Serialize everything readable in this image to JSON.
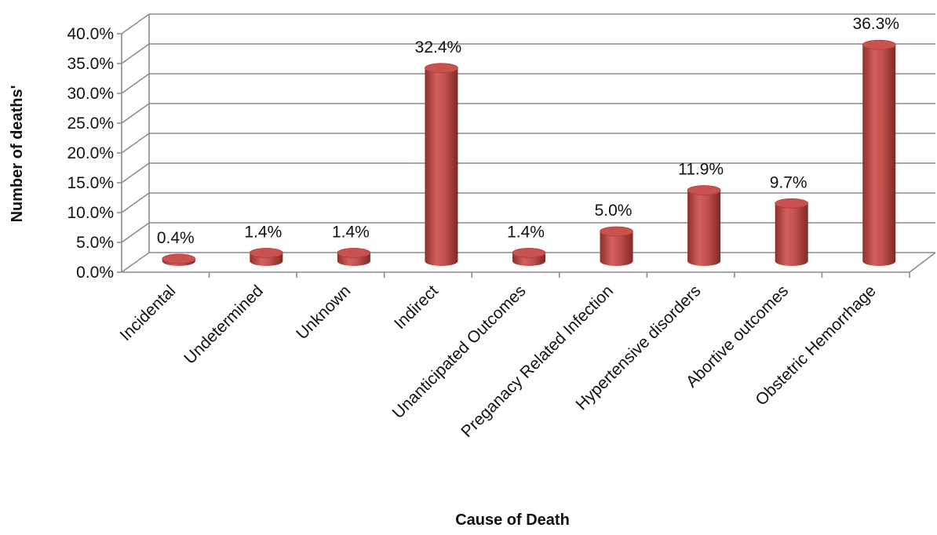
{
  "chart_data": {
    "type": "bar",
    "style": "3d-cylinder",
    "title": "",
    "xlabel": "Cause of Death",
    "ylabel": "Number of deaths'",
    "categories": [
      "Incidental",
      "Undetermined",
      "Unknown",
      "Indirect",
      "Unanticipated Outcomes",
      "Preganacy Related Infection",
      "Hypertensive disorders",
      "Abortive outcomes",
      "Obstetric Hemorrhage"
    ],
    "values": [
      0.4,
      1.4,
      1.4,
      32.4,
      1.4,
      5.0,
      11.9,
      9.7,
      36.3
    ],
    "data_labels": [
      "0.4%",
      "1.4%",
      "1.4%",
      "32.4%",
      "1.4%",
      "5.0%",
      "11.9%",
      "9.7%",
      "36.3%"
    ],
    "yticks": [
      "0.0%",
      "5.0%",
      "10.0%",
      "15.0%",
      "20.0%",
      "25.0%",
      "30.0%",
      "35.0%",
      "40.0%"
    ],
    "ylim": [
      0,
      40
    ],
    "grid": true,
    "legend": "none",
    "bar_color": "#c0504d"
  }
}
